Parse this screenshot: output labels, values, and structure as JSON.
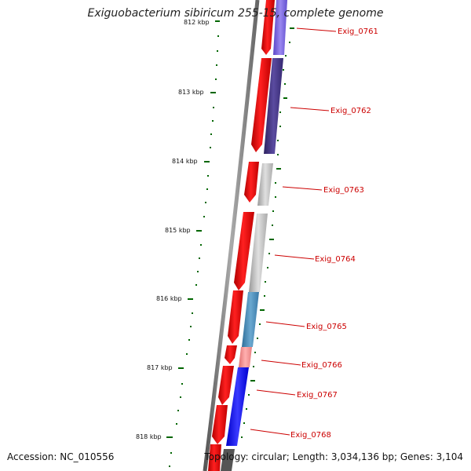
{
  "title": "Exiguobacterium sibiricum 255-15, complete genome",
  "accession": "Accession: NC_010556",
  "topology": "Topology: circular; Length: 3,034,136 bp; Genes: 3,104",
  "ruler": {
    "labels": [
      "812 kbp",
      "813 kbp",
      "814 kbp",
      "815 kbp",
      "816 kbp",
      "817 kbp",
      "818 kbp"
    ]
  },
  "genes": [
    "Exig_0761",
    "Exig_0762",
    "Exig_0763",
    "Exig_0764",
    "Exig_0765",
    "Exig_0766",
    "Exig_0767",
    "Exig_0768"
  ],
  "colors": {
    "forward_strand": "#ff0000",
    "ruler_ticks": "#006600",
    "label_text": "#cc0000",
    "backbone": "#777777"
  }
}
